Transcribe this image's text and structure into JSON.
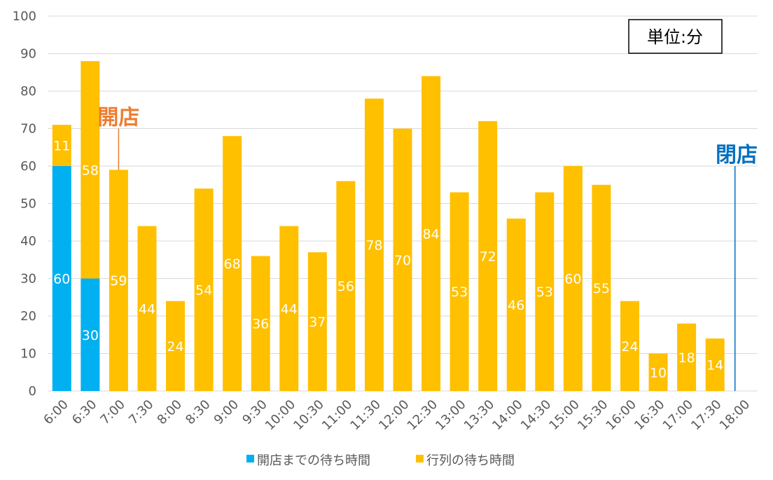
{
  "chart_data": {
    "type": "bar",
    "stacked": true,
    "categories": [
      "6:00",
      "6:30",
      "7:00",
      "7:30",
      "8:00",
      "8:30",
      "9:00",
      "9:30",
      "10:00",
      "10:30",
      "11:00",
      "11:30",
      "12:00",
      "12:30",
      "13:00",
      "13:30",
      "14:00",
      "14:30",
      "15:00",
      "15:30",
      "16:00",
      "16:30",
      "17:00",
      "17:30",
      "18:00"
    ],
    "series": [
      {
        "name": "開店までの待ち時間",
        "color": "#00b0f0",
        "values": [
          60,
          30,
          null,
          null,
          null,
          null,
          null,
          null,
          null,
          null,
          null,
          null,
          null,
          null,
          null,
          null,
          null,
          null,
          null,
          null,
          null,
          null,
          null,
          null,
          null
        ]
      },
      {
        "name": "行列の待ち時間",
        "color": "#ffc000",
        "values": [
          11,
          58,
          59,
          44,
          24,
          54,
          68,
          36,
          44,
          37,
          56,
          78,
          70,
          84,
          53,
          72,
          46,
          53,
          60,
          55,
          24,
          10,
          18,
          14,
          null
        ]
      }
    ],
    "ylim": [
      0,
      100
    ],
    "yticks": [
      0,
      10,
      20,
      30,
      40,
      50,
      60,
      70,
      80,
      90,
      100
    ],
    "grid": true,
    "legend_position": "bottom",
    "unit_label": "単位:分",
    "annotations": [
      {
        "text": "開店",
        "x": "7:00",
        "color": "#ed7d31"
      },
      {
        "text": "閉店",
        "x": "18:00",
        "color": "#0070c0"
      }
    ]
  }
}
